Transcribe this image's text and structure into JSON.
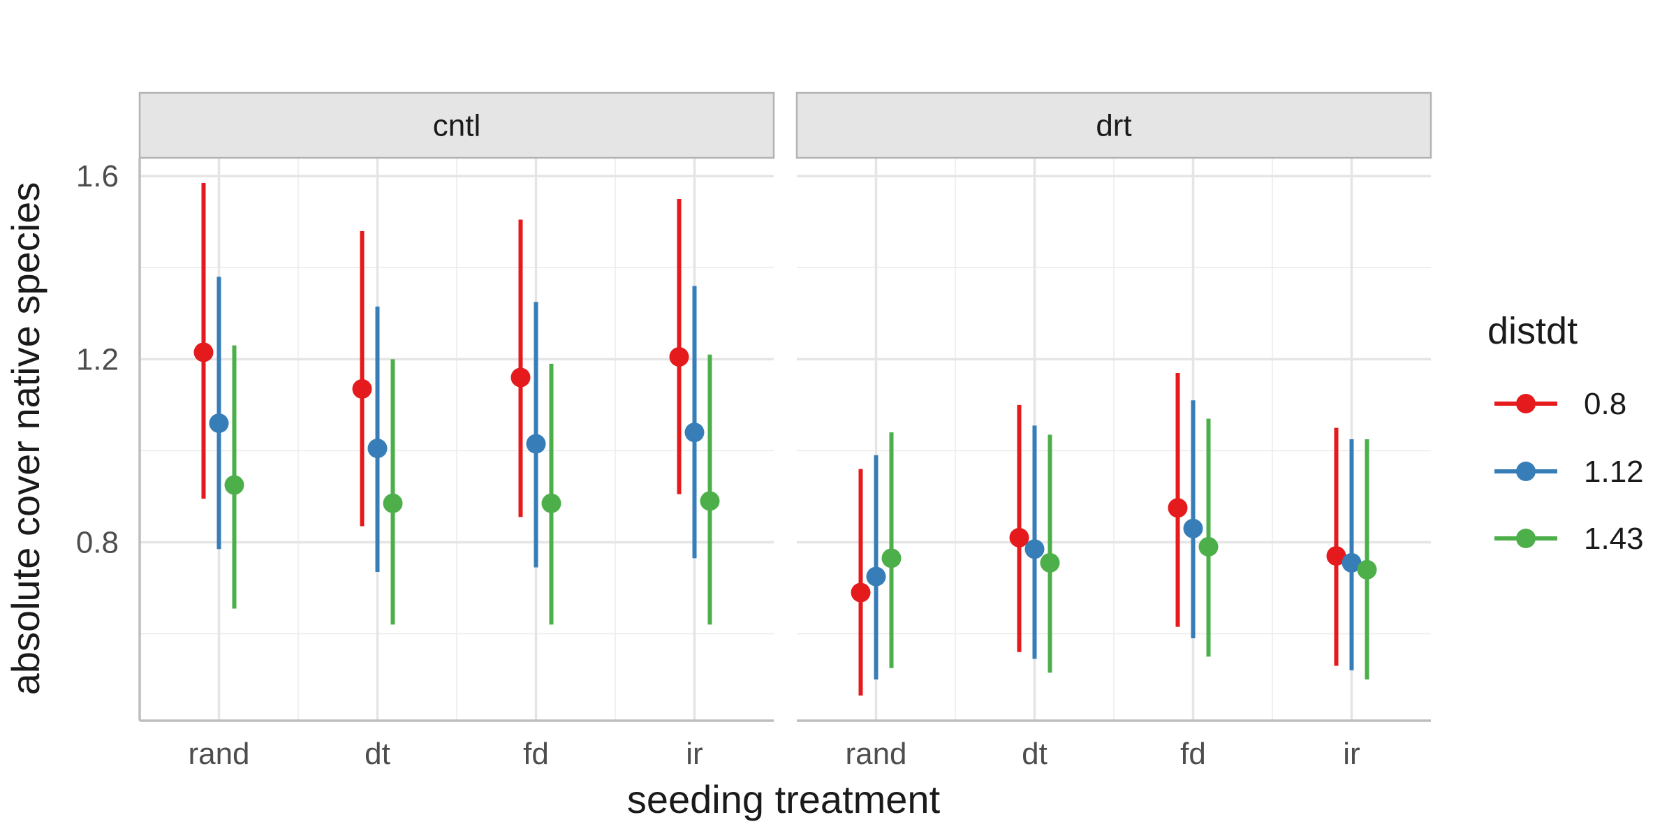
{
  "chart_data": {
    "type": "scatter",
    "subtype": "pointrange-faceted",
    "title": "",
    "xlabel": "seeding treatment",
    "ylabel": "absolute cover native species",
    "categories": [
      "rand",
      "dt",
      "fd",
      "ir"
    ],
    "ylim": [
      0.41,
      1.64
    ],
    "yticks": [
      0.8,
      1.2,
      1.6
    ],
    "ytick_labels": [
      "0.8",
      "1.2",
      "1.6"
    ],
    "grid": true,
    "legend": {
      "title": "distdt",
      "position": "right",
      "entries": [
        "0.8",
        "1.12",
        "1.43"
      ]
    },
    "colors": {
      "0.8": "#E41A1C",
      "1.12": "#377EB8",
      "1.43": "#4DAF4A"
    },
    "facets": [
      {
        "label": "cntl",
        "series": [
          {
            "name": "0.8",
            "values": [
              1.215,
              1.135,
              1.16,
              1.205
            ],
            "lower": [
              0.895,
              0.835,
              0.855,
              0.905
            ],
            "upper": [
              1.585,
              1.48,
              1.505,
              1.55
            ]
          },
          {
            "name": "1.12",
            "values": [
              1.06,
              1.005,
              1.015,
              1.04
            ],
            "lower": [
              0.785,
              0.735,
              0.745,
              0.765
            ],
            "upper": [
              1.38,
              1.315,
              1.325,
              1.36
            ]
          },
          {
            "name": "1.43",
            "values": [
              0.925,
              0.885,
              0.885,
              0.89
            ],
            "lower": [
              0.655,
              0.62,
              0.62,
              0.62
            ],
            "upper": [
              1.23,
              1.2,
              1.19,
              1.21
            ]
          }
        ]
      },
      {
        "label": "drt",
        "series": [
          {
            "name": "0.8",
            "values": [
              0.69,
              0.81,
              0.875,
              0.77
            ],
            "lower": [
              0.465,
              0.56,
              0.615,
              0.53
            ],
            "upper": [
              0.96,
              1.1,
              1.17,
              1.05
            ]
          },
          {
            "name": "1.12",
            "values": [
              0.725,
              0.785,
              0.83,
              0.755
            ],
            "lower": [
              0.5,
              0.545,
              0.59,
              0.52
            ],
            "upper": [
              0.99,
              1.055,
              1.11,
              1.025
            ]
          },
          {
            "name": "1.43",
            "values": [
              0.765,
              0.755,
              0.79,
              0.74
            ],
            "lower": [
              0.525,
              0.515,
              0.55,
              0.5
            ],
            "upper": [
              1.04,
              1.035,
              1.07,
              1.025
            ]
          }
        ]
      }
    ]
  }
}
